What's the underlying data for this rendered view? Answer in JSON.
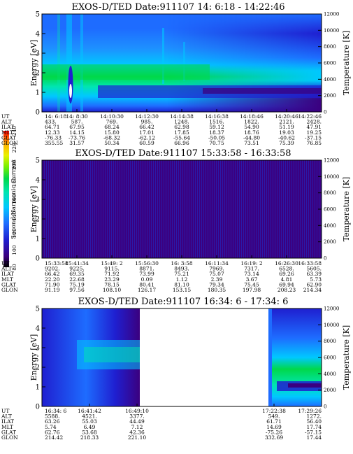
{
  "colorbar": {
    "label": "Second Harmonic Current",
    "ticks": [
      "240",
      "220",
      "200",
      "180",
      "160",
      "140",
      "120",
      "100",
      "80"
    ],
    "colors": [
      "#000000",
      "#3b007f",
      "#1f1fd0",
      "#1e6cff",
      "#00c8ff",
      "#00e5b0",
      "#00d84a",
      "#7cf000",
      "#e8f000",
      "#ffb400",
      "#ff0000"
    ]
  },
  "table_labels": [
    "UT",
    "ALT",
    "ILAT",
    "MLT",
    "GLAT",
    "GLON"
  ],
  "chart_data": [
    {
      "type": "heatmap",
      "title": "EXOS-D/TED   Date:911107  14: 6:18 - 14:22:46",
      "ylabel": "Energy [eV]",
      "y2label": "Temperature [K]",
      "ylim": [
        0,
        5
      ],
      "y2lim": [
        0,
        12000
      ],
      "yticks": [
        "0",
        "1",
        "2",
        "3",
        "4",
        "5"
      ],
      "y2ticks": [
        "0",
        "2000",
        "4000",
        "6000",
        "8000",
        "10000",
        "12000"
      ],
      "columns": [
        {
          "UT": "14: 6:18",
          "ALT": "433.",
          "ILAT": "64.71",
          "MLT": "12.33",
          "GLAT": "-76.33",
          "GLON": "355.55"
        },
        {
          "UT": "14: 8:30",
          "ALT": "587.",
          "ILAT": "67.95",
          "MLT": "14.15",
          "GLAT": "-73.76",
          "GLON": "31.57"
        },
        {
          "UT": "14:10:30",
          "ALT": "769.",
          "ILAT": "68.24",
          "MLT": "15.80",
          "GLAT": "-68.32",
          "GLON": "50.34"
        },
        {
          "UT": "14:12:30",
          "ALT": "985.",
          "ILAT": "66.42",
          "MLT": "17.01",
          "GLAT": "-62.12",
          "GLON": "60.59"
        },
        {
          "UT": "14:14:38",
          "ALT": "1248.",
          "ILAT": "62.98",
          "MLT": "17.85",
          "GLAT": "-55.64",
          "GLON": "66.96"
        },
        {
          "UT": "14:16:38",
          "ALT": "1516.",
          "ILAT": "59.12",
          "MLT": "18.37",
          "GLAT": "-50.05",
          "GLON": "70.75"
        },
        {
          "UT": "14:18:46",
          "ALT": "1822.",
          "ILAT": "54.90",
          "MLT": "18.76",
          "GLAT": "-44.80",
          "GLON": "73.51"
        },
        {
          "UT": "14:20:46",
          "ALT": "2121.",
          "ILAT": "51.19",
          "MLT": "19.03",
          "GLAT": "-40.62",
          "GLON": "75.39"
        },
        {
          "UT": "14:22:46",
          "ALT": "2428.",
          "ILAT": "47.91",
          "MLT": "19.25",
          "GLAT": "-37.15",
          "GLON": "76.85"
        }
      ]
    },
    {
      "type": "heatmap",
      "title": "EXOS-D/TED   Date:911107  15:33:58 - 16:33:58",
      "ylabel": "Energy [eV]",
      "y2label": "Temperature [K]",
      "ylim": [
        0,
        5
      ],
      "y2lim": [
        0,
        12000
      ],
      "yticks": [
        "0",
        "1",
        "2",
        "3",
        "4",
        "5"
      ],
      "y2ticks": [
        "0",
        "2000",
        "4000",
        "6000",
        "8000",
        "10000",
        "12000"
      ],
      "columns": [
        {
          "UT": "15:33:58",
          "ALT": "9202.",
          "ILAT": "66.42",
          "MLT": "22.20",
          "GLAT": "71.90",
          "GLON": "91.19"
        },
        {
          "UT": "15:41:34",
          "ALT": "9225.",
          "ILAT": "69.35",
          "MLT": "22.68",
          "GLAT": "75.19",
          "GLON": "97.56"
        },
        {
          "UT": "15:49: 2",
          "ALT": "9115.",
          "ILAT": "71.92",
          "MLT": "23.29",
          "GLAT": "78.15",
          "GLON": "108.10"
        },
        {
          "UT": "15:56:30",
          "ALT": "8871.",
          "ILAT": "73.99",
          "MLT": "0.09",
          "GLAT": "80.41",
          "GLON": "126.17"
        },
        {
          "UT": "16: 3:58",
          "ALT": "8493.",
          "ILAT": "75.21",
          "MLT": "1.12",
          "GLAT": "81.10",
          "GLON": "153.15"
        },
        {
          "UT": "16:11:34",
          "ALT": "7969.",
          "ILAT": "75.07",
          "MLT": "2.39",
          "GLAT": "79.34",
          "GLON": "180.35"
        },
        {
          "UT": "16:19: 2",
          "ALT": "7317.",
          "ILAT": "73.14",
          "MLT": "3.67",
          "GLAT": "75.45",
          "GLON": "197.98"
        },
        {
          "UT": "16:26:30",
          "ALT": "6528.",
          "ILAT": "69.26",
          "MLT": "4.81",
          "GLAT": "69.94",
          "GLON": "208.23"
        },
        {
          "UT": "16:33:58",
          "ALT": "5605.",
          "ILAT": "63.39",
          "MLT": "5.73",
          "GLAT": "62.90",
          "GLON": "214.34"
        }
      ]
    },
    {
      "type": "heatmap",
      "title": "EXOS-D/TED   Date:911107  16:34: 6 - 17:34: 6",
      "ylabel": "Energy [eV]",
      "y2label": "Temperature [K]",
      "ylim": [
        0,
        5
      ],
      "y2lim": [
        0,
        12000
      ],
      "yticks": [
        "0",
        "1",
        "2",
        "3",
        "4",
        "5"
      ],
      "y2ticks": [
        "0",
        "2000",
        "4000",
        "6000",
        "8000",
        "10000",
        "12000"
      ],
      "columns": [
        {
          "UT": "16:34: 6",
          "ALT": "5588.",
          "ILAT": "63.26",
          "MLT": "5.74",
          "GLAT": "62.76",
          "GLON": "214.42"
        },
        {
          "UT": "16:41:42",
          "ALT": "4521.",
          "ILAT": "55.03",
          "MLT": "6.49",
          "GLAT": "53.68",
          "GLON": "218.33"
        },
        {
          "UT": "16:49:10",
          "ALT": "3377.",
          "ILAT": "44.49",
          "MLT": "7.12",
          "GLAT": "42.36",
          "GLON": "221.10"
        },
        {
          "UT": "17:22:38",
          "ALT": "549.",
          "ILAT": "61.71",
          "MLT": "14.69",
          "GLAT": "-75.26",
          "GLON": "332.69"
        },
        {
          "UT": "17:29:26",
          "ALT": "1272.",
          "ILAT": "56.40",
          "MLT": "17.74",
          "GLAT": "-57.15",
          "GLON": "17.44"
        }
      ]
    }
  ]
}
